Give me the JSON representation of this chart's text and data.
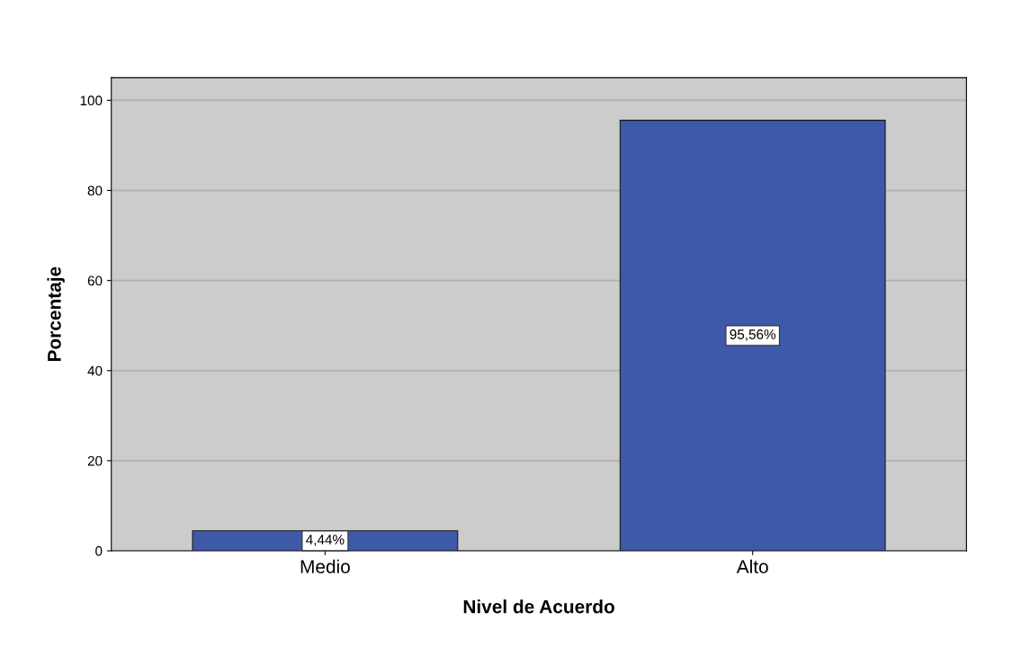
{
  "chart_data": {
    "type": "bar",
    "xlabel": "Nivel de Acuerdo",
    "ylabel": "Porcentaje",
    "categories": [
      "Medio",
      "Alto"
    ],
    "values": [
      4.44,
      95.56
    ],
    "value_labels": [
      "4,44%",
      "95,56%"
    ],
    "color": "#3d59a8",
    "ylim": [
      0,
      105
    ],
    "yticks": [
      0,
      20,
      40,
      60,
      80,
      100
    ],
    "grid": "y"
  }
}
